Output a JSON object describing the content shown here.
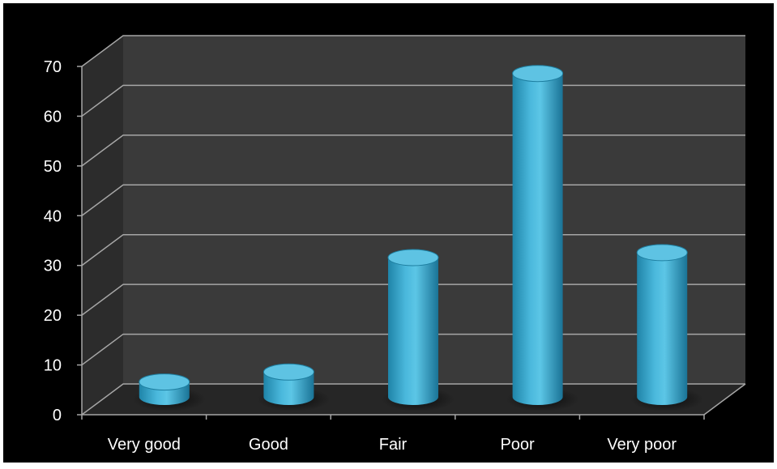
{
  "chart_data": {
    "type": "bar",
    "style": "3d-cylinder",
    "categories": [
      "Very good",
      "Good",
      "Fair",
      "Poor",
      "Very poor"
    ],
    "values": [
      3,
      5,
      28,
      65,
      29
    ],
    "ylim": [
      0,
      70
    ],
    "yticks": [
      0,
      10,
      20,
      30,
      40,
      50,
      60,
      70
    ],
    "grid": true,
    "legend": "none",
    "colors": {
      "background": "#000000",
      "back_wall": "#3a3a3a",
      "side_wall": "#2c2c2c",
      "floor": "#262626",
      "gridline": "#a6a6a6",
      "bar": "#41aed2",
      "bar_dark": "#1d7ea0",
      "bar_top": "#5ec3e3",
      "text": "#ffffff"
    }
  }
}
